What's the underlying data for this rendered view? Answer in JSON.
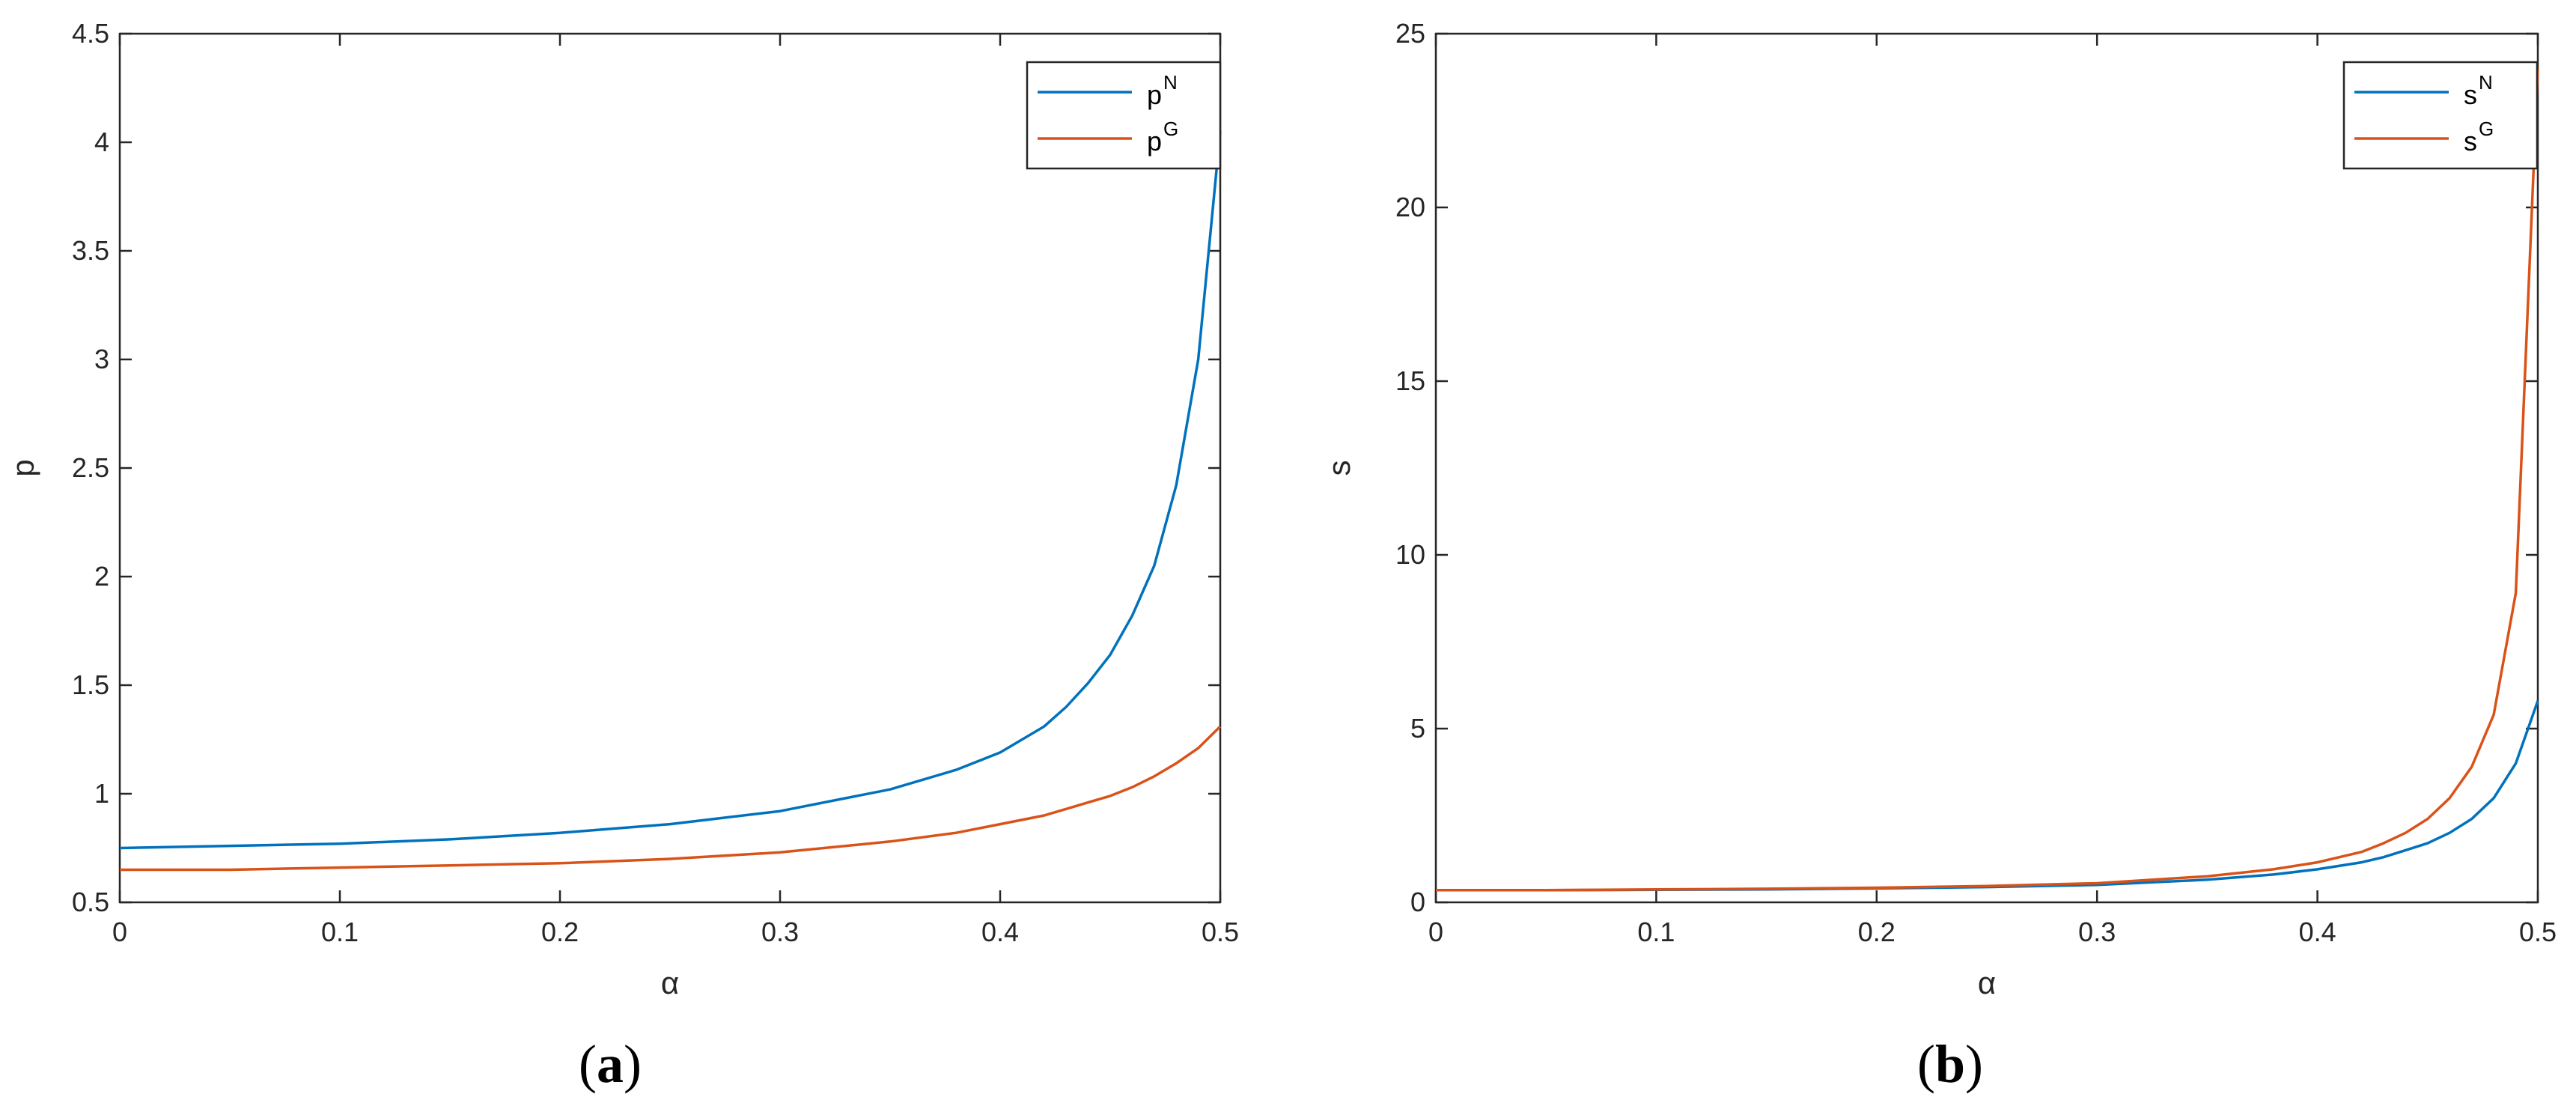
{
  "colors": {
    "blue": "#0072BD",
    "orange": "#D95319",
    "axis": "#262626"
  },
  "charts": [
    {
      "panel_label": "a",
      "chart_data": {
        "type": "line",
        "xlabel": "α",
        "ylabel": "p",
        "xlim": [
          0,
          0.5
        ],
        "ylim": [
          0.5,
          4.5
        ],
        "xticks": [
          "0",
          "0.1",
          "0.2",
          "0.3",
          "0.4",
          "0.5"
        ],
        "yticks": [
          "0.5",
          "1",
          "1.5",
          "2",
          "2.5",
          "3",
          "3.5",
          "4",
          "4.5"
        ],
        "legend_position": "top-right",
        "grid": false,
        "x": [
          0,
          0.05,
          0.1,
          0.15,
          0.2,
          0.25,
          0.3,
          0.35,
          0.38,
          0.4,
          0.42,
          0.43,
          0.44,
          0.45,
          0.46,
          0.47,
          0.48,
          0.49,
          0.5
        ],
        "series": [
          {
            "base": "p",
            "sup": "N",
            "color": "blue",
            "values": [
              0.75,
              0.76,
              0.77,
              0.79,
              0.82,
              0.86,
              0.92,
              1.02,
              1.11,
              1.19,
              1.31,
              1.4,
              1.51,
              1.64,
              1.82,
              2.05,
              2.42,
              3.0,
              4.05
            ]
          },
          {
            "base": "p",
            "sup": "G",
            "color": "orange",
            "values": [
              0.65,
              0.65,
              0.66,
              0.67,
              0.68,
              0.7,
              0.73,
              0.78,
              0.82,
              0.86,
              0.9,
              0.93,
              0.96,
              0.99,
              1.03,
              1.08,
              1.14,
              1.21,
              1.31
            ]
          }
        ]
      }
    },
    {
      "panel_label": "b",
      "chart_data": {
        "type": "line",
        "xlabel": "α",
        "ylabel": "s",
        "xlim": [
          0,
          0.5
        ],
        "ylim": [
          0,
          25
        ],
        "xticks": [
          "0",
          "0.1",
          "0.2",
          "0.3",
          "0.4",
          "0.5"
        ],
        "yticks": [
          "0",
          "5",
          "10",
          "15",
          "20",
          "25"
        ],
        "legend_position": "top-right",
        "grid": false,
        "x": [
          0,
          0.05,
          0.1,
          0.15,
          0.2,
          0.25,
          0.3,
          0.35,
          0.38,
          0.4,
          0.42,
          0.43,
          0.44,
          0.45,
          0.46,
          0.47,
          0.48,
          0.49,
          0.5
        ],
        "series": [
          {
            "base": "s",
            "sup": "N",
            "color": "blue",
            "values": [
              0.35,
              0.35,
              0.36,
              0.37,
              0.4,
              0.44,
              0.5,
              0.65,
              0.8,
              0.95,
              1.15,
              1.3,
              1.5,
              1.7,
              2.0,
              2.4,
              3.0,
              4.0,
              5.8
            ]
          },
          {
            "base": "s",
            "sup": "G",
            "color": "orange",
            "values": [
              0.35,
              0.35,
              0.37,
              0.39,
              0.42,
              0.47,
              0.55,
              0.75,
              0.95,
              1.15,
              1.45,
              1.7,
              2.0,
              2.4,
              3.0,
              3.9,
              5.4,
              8.9,
              24.0
            ]
          }
        ]
      }
    }
  ]
}
